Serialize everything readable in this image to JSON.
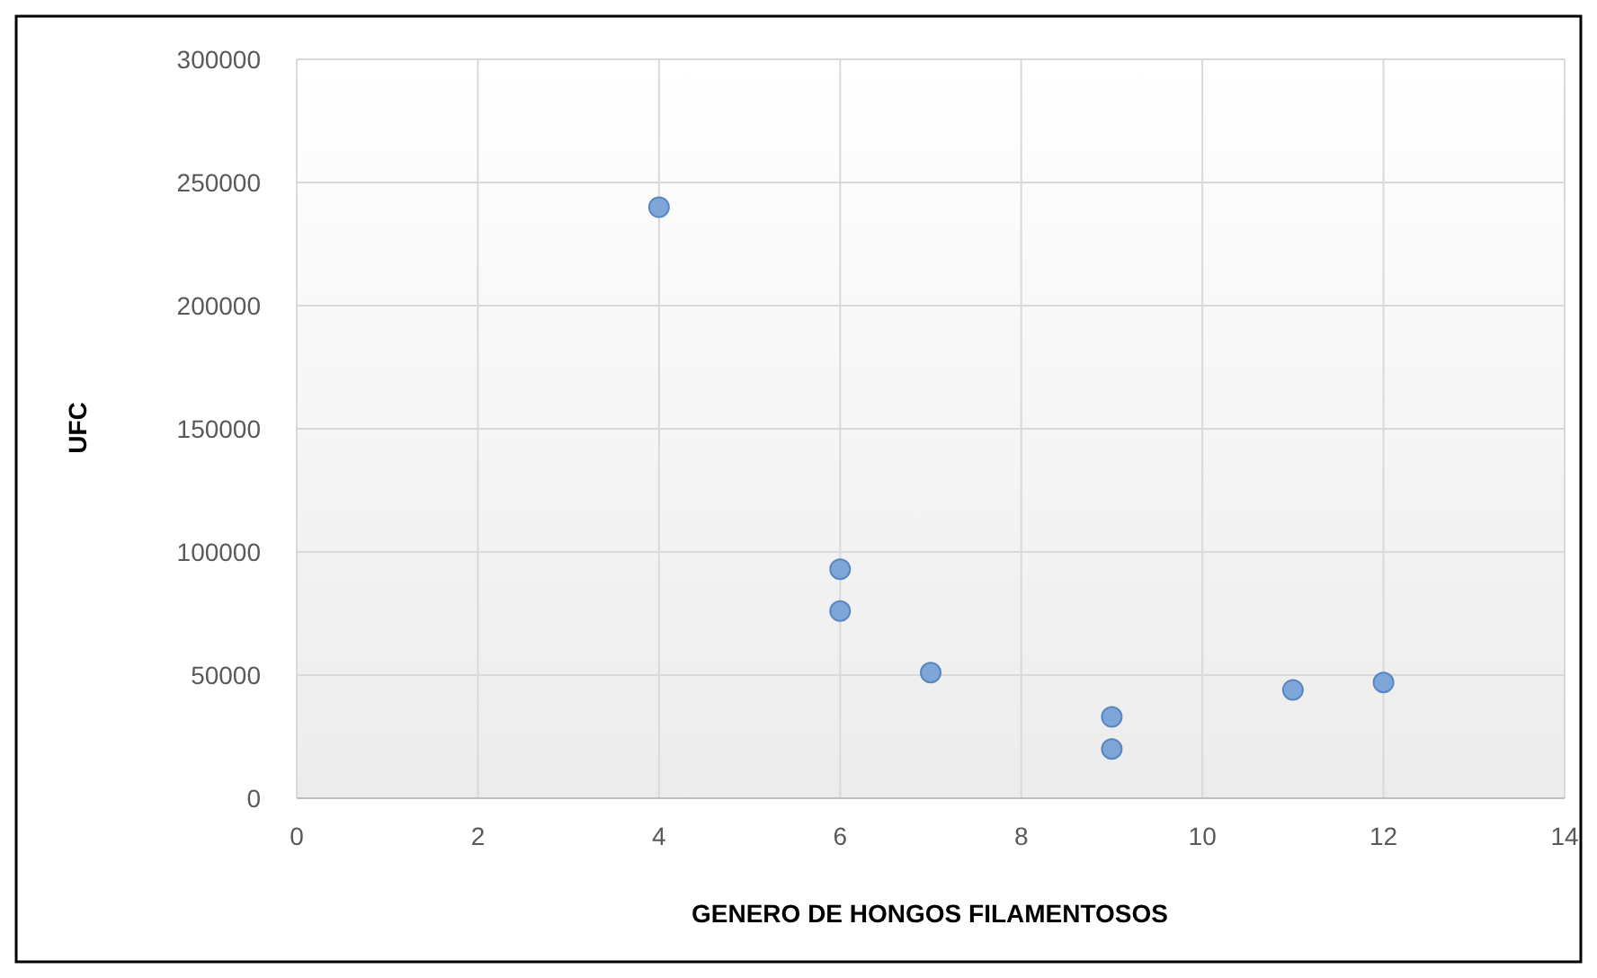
{
  "chart_data": {
    "type": "scatter",
    "xlabel": "GENERO DE HONGOS FILAMENTOSOS",
    "ylabel": "UFC",
    "x": [
      4,
      6,
      6,
      7,
      9,
      9,
      11,
      12
    ],
    "values": [
      240000,
      93000,
      76000,
      51000,
      33000,
      20000,
      44000,
      47000
    ],
    "color": "#7ea6d8",
    "marker": "circle",
    "grid": true,
    "xlim": [
      0,
      14
    ],
    "xticks": [
      0,
      2,
      4,
      6,
      8,
      10,
      12,
      14
    ],
    "ylim": [
      0,
      300000
    ],
    "yticks": [
      0,
      50000,
      100000,
      150000,
      200000,
      250000,
      300000
    ]
  }
}
